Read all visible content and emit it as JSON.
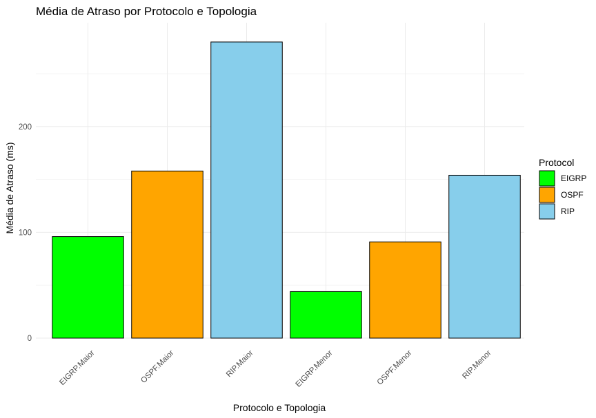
{
  "chart_data": {
    "type": "bar",
    "title": "Média de Atraso por Protocolo e Topologia",
    "xlabel": "Protocolo e Topologia",
    "ylabel": "Média de Atraso (ms)",
    "categories": [
      "EIGRP.Maior",
      "OSPF.Maior",
      "RIP.Maior",
      "EIGRP.Menor",
      "OSPF.Menor",
      "RIP.Menor"
    ],
    "values": [
      96,
      158,
      280,
      44,
      91,
      154
    ],
    "protocols": [
      "EIGRP",
      "OSPF",
      "RIP",
      "EIGRP",
      "OSPF",
      "RIP"
    ],
    "yticks": [
      0,
      100,
      200
    ],
    "ylim": [
      0,
      280
    ],
    "grid": true,
    "legend": {
      "title": "Protocol",
      "placement": "right",
      "entries": [
        {
          "label": "EIGRP",
          "color": "#00ff00"
        },
        {
          "label": "OSPF",
          "color": "#ffa500"
        },
        {
          "label": "RIP",
          "color": "#87ceeb"
        }
      ]
    }
  }
}
